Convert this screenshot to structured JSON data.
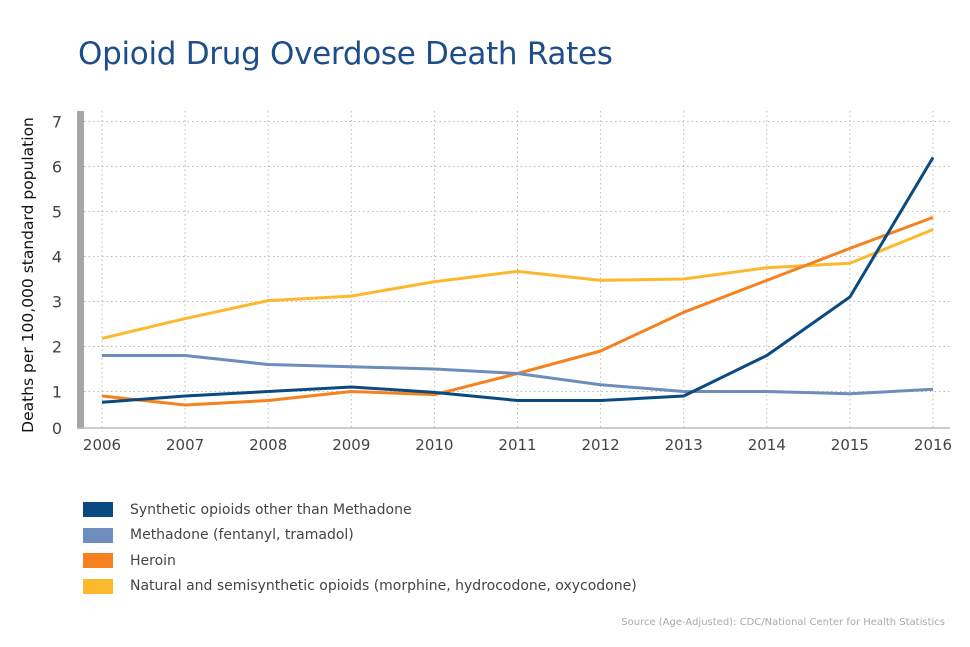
{
  "chart_data": {
    "type": "line",
    "title": "Opioid Drug Overdose Death Rates",
    "ylabel": "Deaths per 100,000 standard population",
    "xlabel": "",
    "x": [
      "2006",
      "2007",
      "2008",
      "2009",
      "2010",
      "2011",
      "2012",
      "2013",
      "2014",
      "2015",
      "2016"
    ],
    "yticks": [
      "0",
      "1",
      "2",
      "3",
      "4",
      "5",
      "6",
      "7"
    ],
    "ylim": [
      0,
      7
    ],
    "grid": true,
    "legend_position": "bottom",
    "series": [
      {
        "name": "Synthetic opioids other than Methadone",
        "color": "#0b4a80",
        "values": [
          0.76,
          0.9,
          1.0,
          1.1,
          0.98,
          0.8,
          0.8,
          0.9,
          1.8,
          3.1,
          6.2
        ]
      },
      {
        "name": "Methadone (fentanyl, tramadol)",
        "color": "#6d8dbd",
        "values": [
          1.8,
          1.8,
          1.6,
          1.55,
          1.5,
          1.4,
          1.15,
          1.0,
          1.0,
          0.95,
          1.05
        ]
      },
      {
        "name": "Heroin",
        "color": "#f5821f",
        "values": [
          0.9,
          0.7,
          0.8,
          1.0,
          0.93,
          1.4,
          1.9,
          2.76,
          3.47,
          4.18,
          4.87
        ]
      },
      {
        "name": "Natural and semisynthetic opioids (morphine, hydrocodone, oxycodone)",
        "color": "#fdb92e",
        "values": [
          2.18,
          2.62,
          3.02,
          3.12,
          3.44,
          3.67,
          3.47,
          3.5,
          3.75,
          3.85,
          4.6
        ]
      }
    ]
  },
  "source": "Source (Age-Adjusted): CDC/National Center for Health Statistics"
}
